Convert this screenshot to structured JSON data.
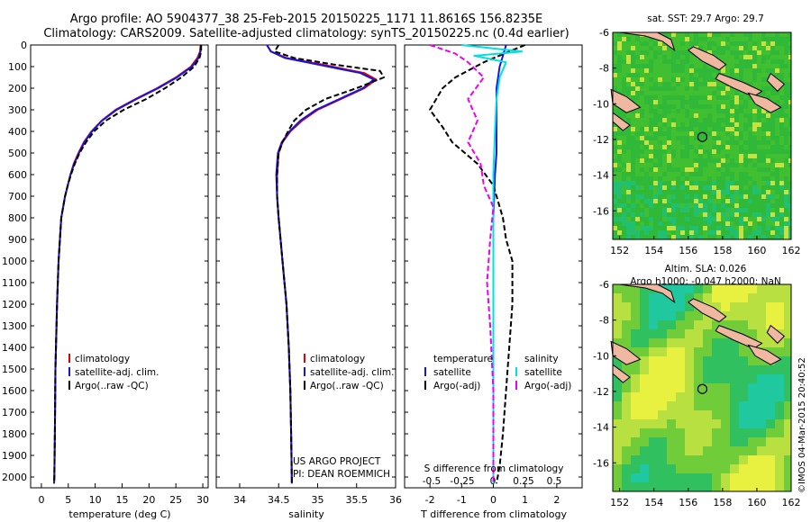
{
  "header": {
    "line1": "Argo profile: AO 5904377_38 25-Feb-2015 20150225_1171 11.8616S 156.8235E",
    "line2": "Climatology: CARS2009. Satellite-adjusted climatology: synTS_20150225.nc (0.4d earlier)"
  },
  "credit": "©IMOS 04-Mar-2015 20:40:52",
  "project": {
    "line1": "US ARGO PROJECT",
    "line2": "PI: DEAN ROEMMICH"
  },
  "colors": {
    "clim": "#e00000",
    "sat": "#1515e0",
    "argo": "#000000",
    "sat_s": "#00e0e0",
    "argo_s": "#ee00ee",
    "land": "#f0b8a0"
  },
  "chart_data": [
    {
      "type": "line",
      "id": "temperature",
      "xlabel": "temperature (deg C)",
      "xlim": [
        -2,
        31
      ],
      "ylim": [
        0,
        2050
      ],
      "xticks": [
        0,
        5,
        10,
        15,
        20,
        25,
        30
      ],
      "yticks": [
        0,
        100,
        200,
        300,
        400,
        500,
        600,
        700,
        800,
        900,
        1000,
        1100,
        1200,
        1300,
        1400,
        1500,
        1600,
        1700,
        1800,
        1900,
        2000
      ],
      "legend": [
        "climatology",
        "satellite-adj. clim.",
        "Argo(..raw -QC)"
      ],
      "series": [
        {
          "name": "climatology",
          "color": "#e00000",
          "x": [
            29.6,
            29.5,
            29.0,
            27.8,
            25.0,
            21.5,
            17.5,
            13.8,
            11.2,
            9.3,
            7.9,
            6.9,
            6.0,
            5.4,
            4.9,
            4.4,
            3.7,
            3.2,
            2.9,
            2.6,
            2.5,
            2.4,
            2.35
          ],
          "y": [
            0,
            30,
            60,
            100,
            150,
            200,
            250,
            300,
            350,
            400,
            450,
            500,
            550,
            600,
            650,
            700,
            800,
            1000,
            1200,
            1500,
            1800,
            2000,
            2030
          ]
        },
        {
          "name": "satellite-adj. clim.",
          "color": "#1515e0",
          "x": [
            29.7,
            29.6,
            29.2,
            28.0,
            25.2,
            21.7,
            17.7,
            14.0,
            11.3,
            9.4,
            8.0,
            7.0,
            6.1,
            5.4,
            4.9,
            4.4,
            3.7,
            3.2,
            2.9,
            2.6,
            2.5,
            2.4,
            2.35
          ],
          "y": [
            0,
            30,
            60,
            100,
            150,
            200,
            250,
            300,
            350,
            400,
            450,
            500,
            550,
            600,
            650,
            700,
            800,
            1000,
            1200,
            1500,
            1800,
            2000,
            2030
          ]
        },
        {
          "name": "Argo(..raw -QC)",
          "color": "#000000",
          "dash": "6,3",
          "x": [
            29.7,
            29.7,
            29.4,
            28.4,
            26.0,
            23.0,
            19.5,
            15.3,
            12.0,
            9.8,
            8.3,
            7.1,
            6.2,
            5.5,
            4.9,
            4.4,
            3.7,
            3.2,
            2.9,
            2.6,
            2.5,
            2.4,
            2.35
          ],
          "y": [
            0,
            30,
            60,
            100,
            150,
            200,
            250,
            300,
            350,
            400,
            450,
            500,
            550,
            600,
            650,
            700,
            800,
            1000,
            1200,
            1500,
            1800,
            2000,
            2030
          ]
        }
      ]
    },
    {
      "type": "line",
      "id": "salinity",
      "xlabel": "salinity",
      "xlim": [
        33.7,
        36.0
      ],
      "ylim": [
        0,
        2050
      ],
      "xticks": [
        34,
        34.5,
        35,
        35.5,
        36
      ],
      "legend": [
        "climatology",
        "satellite-adj. clim.",
        "Argo(..raw -QC)"
      ],
      "series": [
        {
          "name": "climatology",
          "color": "#e00000",
          "x": [
            34.35,
            34.4,
            34.6,
            35.05,
            35.6,
            35.75,
            35.6,
            35.3,
            35.0,
            34.8,
            34.65,
            34.55,
            34.5,
            34.48,
            34.48,
            34.5,
            34.55,
            34.6,
            34.63,
            34.65,
            34.66,
            34.67
          ],
          "y": [
            0,
            30,
            60,
            90,
            130,
            160,
            200,
            250,
            300,
            350,
            400,
            450,
            500,
            600,
            700,
            800,
            1000,
            1200,
            1400,
            1600,
            1800,
            2030
          ]
        },
        {
          "name": "satellite-adj. clim.",
          "color": "#1515e0",
          "x": [
            34.35,
            34.4,
            34.58,
            35.0,
            35.55,
            35.72,
            35.58,
            35.28,
            34.98,
            34.78,
            34.64,
            34.54,
            34.49,
            34.47,
            34.48,
            34.5,
            34.55,
            34.6,
            34.63,
            34.65,
            34.66,
            34.67
          ],
          "y": [
            0,
            30,
            60,
            90,
            130,
            160,
            200,
            250,
            300,
            350,
            400,
            450,
            500,
            600,
            700,
            800,
            1000,
            1200,
            1400,
            1600,
            1800,
            2030
          ]
        },
        {
          "name": "Argo(..raw -QC)",
          "color": "#000000",
          "dash": "6,3",
          "x": [
            34.5,
            34.45,
            34.7,
            35.2,
            35.8,
            35.85,
            35.5,
            35.1,
            34.85,
            34.7,
            34.62,
            34.55,
            34.5,
            34.48,
            34.48,
            34.5,
            34.55,
            34.6,
            34.63,
            34.65,
            34.66,
            34.67
          ],
          "y": [
            0,
            30,
            60,
            90,
            120,
            150,
            200,
            250,
            300,
            350,
            400,
            450,
            500,
            600,
            700,
            800,
            1000,
            1200,
            1400,
            1600,
            1800,
            2030
          ]
        }
      ]
    },
    {
      "type": "line",
      "id": "differences",
      "xlabel": "T difference from climatology",
      "xlabel2": "S difference from climatology",
      "xlim": [
        -2.8,
        2.8
      ],
      "ylim": [
        0,
        2050
      ],
      "xticks": [
        -2,
        -1,
        0,
        1,
        2
      ],
      "xticks_s": [
        -0.5,
        -0.25,
        0,
        0.25,
        0.5
      ],
      "legend_headers": [
        "temperature",
        "salinity"
      ],
      "legend": [
        "satellite",
        "Argo(-adj)",
        "satellite",
        "Argo(-adj)"
      ],
      "series": [
        {
          "name": "T satellite",
          "color": "#1515e0",
          "x": [
            0.4,
            0.3,
            0.2,
            0.1,
            0.1,
            0.1,
            0.1,
            0.05,
            0.0,
            0.0,
            0.0,
            0.0,
            0.0,
            0.0,
            0.0
          ],
          "y": [
            0,
            50,
            100,
            200,
            300,
            400,
            500,
            600,
            800,
            1000,
            1200,
            1400,
            1600,
            1800,
            2030
          ]
        },
        {
          "name": "T Argo(-adj)",
          "color": "#000000",
          "dash": "6,3",
          "x": [
            1.0,
            0.5,
            -0.3,
            -1.2,
            -1.6,
            -2.0,
            -1.6,
            -1.3,
            -0.5,
            0.0,
            0.3,
            0.4,
            0.6,
            0.6,
            0.5,
            0.4,
            0.3,
            0.2,
            0.1
          ],
          "y": [
            0,
            30,
            80,
            150,
            200,
            300,
            380,
            450,
            550,
            650,
            800,
            900,
            1000,
            1200,
            1400,
            1600,
            1800,
            1950,
            2030
          ]
        },
        {
          "name": "S satellite",
          "color": "#00e0e0",
          "x": [
            -1.0,
            0.9,
            -0.6,
            0.4,
            0.2,
            0.1,
            0.05,
            0.0,
            0.0,
            0.0,
            0.0,
            0.0,
            0.0,
            0.0
          ],
          "y": [
            0,
            30,
            50,
            80,
            150,
            250,
            400,
            600,
            800,
            1000,
            1200,
            1500,
            1800,
            2030
          ]
        },
        {
          "name": "S Argo(-adj)",
          "color": "#ee00ee",
          "dash": "6,3",
          "x": [
            -2.0,
            -1.2,
            -0.8,
            -0.3,
            -0.8,
            -0.5,
            -0.8,
            -0.4,
            -0.3,
            0.0,
            -0.1,
            -0.2,
            -0.1,
            0.0,
            0.0
          ],
          "y": [
            0,
            40,
            80,
            150,
            250,
            350,
            450,
            550,
            650,
            750,
            900,
            1100,
            1300,
            1600,
            2030
          ]
        }
      ]
    },
    {
      "type": "heatmap",
      "id": "sst-map",
      "title": "sat. SST: 29.7 Argo: 29.7",
      "xticks": [
        152,
        154,
        156,
        158,
        160,
        162
      ],
      "yticks": [
        -6,
        -8,
        -10,
        -12,
        -14,
        -16
      ],
      "xlim": [
        151.6,
        162
      ],
      "ylim": [
        -17.6,
        -6
      ],
      "marker": {
        "lon": 156.8235,
        "lat": -11.8616
      }
    },
    {
      "type": "heatmap",
      "id": "sla-map",
      "title": "Altim. SLA: 0.026",
      "subtitle": "Argo h1000: -0.047 h2000: NaN",
      "xticks": [
        152,
        154,
        156,
        158,
        160,
        162
      ],
      "yticks": [
        -6,
        -8,
        -10,
        -12,
        -14,
        -16
      ],
      "xlim": [
        151.6,
        162
      ],
      "ylim": [
        -17.6,
        -6
      ],
      "marker": {
        "lon": 156.8235,
        "lat": -11.8616
      }
    }
  ]
}
